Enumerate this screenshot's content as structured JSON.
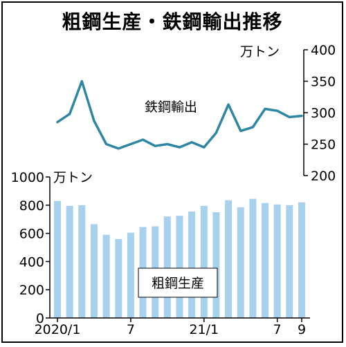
{
  "title": "粗鋼生産・鉄鋼輸出推移",
  "chart_data": [
    {
      "type": "line",
      "series": [
        {
          "name": "鉄鋼輸出",
          "values": [
            285,
            298,
            350,
            287,
            250,
            243,
            250,
            257,
            247,
            250,
            245,
            253,
            245,
            268,
            313,
            271,
            277,
            306,
            303,
            293,
            295
          ],
          "color": "#2e86a4"
        }
      ],
      "unit": "万トン",
      "ylim": [
        200,
        400
      ],
      "yticks": [
        "200",
        "250",
        "300",
        "350",
        "400"
      ],
      "axis_side": "right"
    },
    {
      "type": "bar",
      "series": [
        {
          "name": "粗鋼生産",
          "values": [
            830,
            795,
            800,
            665,
            590,
            560,
            605,
            645,
            650,
            720,
            725,
            755,
            795,
            750,
            835,
            785,
            845,
            815,
            805,
            800,
            820
          ],
          "color": "#a8d1ee"
        }
      ],
      "unit": "万トン",
      "ylim": [
        0,
        1000
      ],
      "yticks": [
        "0",
        "200",
        "400",
        "600",
        "800",
        "1000"
      ],
      "axis_side": "left"
    }
  ],
  "x_tick_labels": [
    "2020/1",
    "7",
    "21/1",
    "7",
    "9"
  ],
  "x_tick_months": [
    0,
    6,
    12,
    18,
    20
  ]
}
